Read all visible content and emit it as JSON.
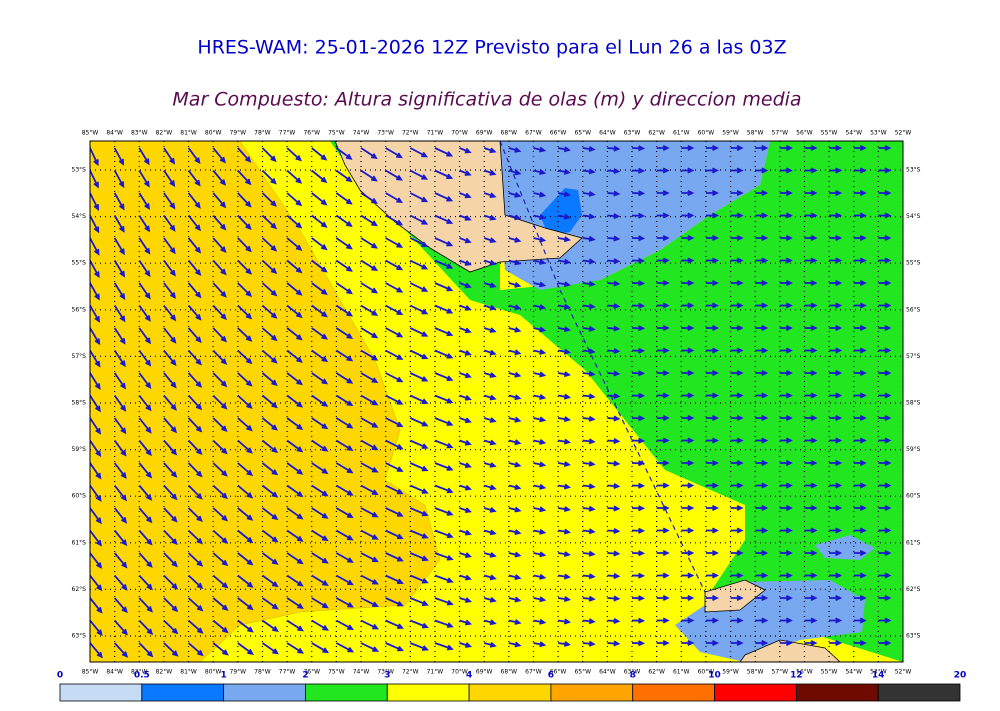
{
  "header": {
    "title": "HRES-WAM: 25-01-2026 12Z Previsto para el Lun 26 a las 03Z",
    "subtitle": "Mar Compuesto: Altura significativa de olas (m) y direccion media"
  },
  "map": {
    "lon_labels": [
      "85°W",
      "84°W",
      "83°W",
      "82°W",
      "81°W",
      "80°W",
      "79°W",
      "78°W",
      "77°W",
      "76°W",
      "75°W",
      "74°W",
      "73°W",
      "72°W",
      "71°W",
      "70°W",
      "69°W",
      "68°W",
      "67°W",
      "66°W",
      "65°W",
      "64°W",
      "63°W",
      "62°W",
      "61°W",
      "60°W",
      "59°W",
      "58°W",
      "57°W",
      "56°W",
      "55°W",
      "54°W",
      "53°W",
      "52°W"
    ],
    "lat_labels": [
      "53°S",
      "54°S",
      "55°S",
      "56°S",
      "57°S",
      "58°S",
      "59°S",
      "60°S",
      "61°S",
      "62°S",
      "63°S"
    ]
  },
  "legend": {
    "ticks": [
      0,
      0.5,
      1,
      2,
      3,
      4,
      6,
      8,
      10,
      12,
      14,
      20
    ],
    "colors": [
      "#c6dcf5",
      "#0a78ff",
      "#78a8f0",
      "#22e620",
      "#ffff00",
      "#ffd700",
      "#ffa500",
      "#ff7000",
      "#ff0000",
      "#6e0a00",
      "#333333"
    ]
  }
}
